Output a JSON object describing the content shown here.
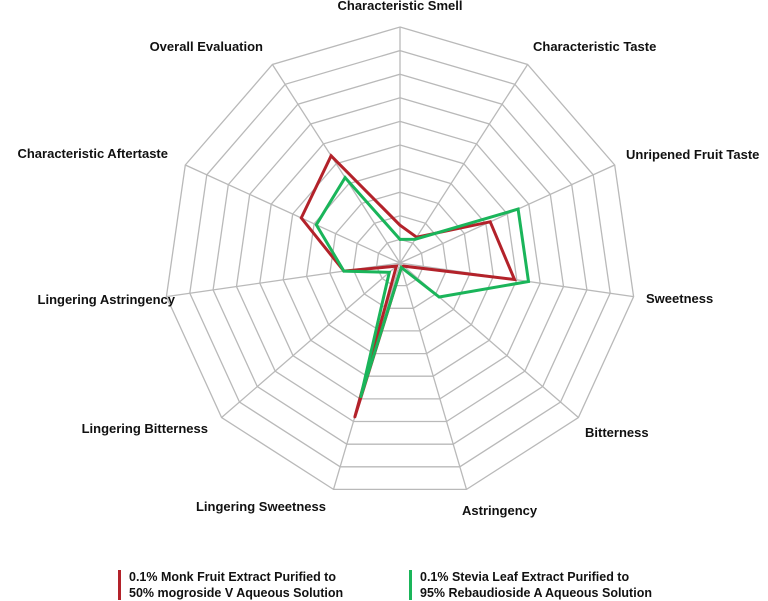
{
  "chart_data": {
    "type": "radar",
    "axes": [
      "Characteristic Smell",
      "Characteristic Taste",
      "Unripened Fruit Taste",
      "Sweetness",
      "Bitterness",
      "Astringency",
      "Lingering Sweetness",
      "Lingering Bitterness",
      "Lingering Astringency",
      "Characteristic Aftertaste",
      "Overall Evaluation"
    ],
    "range": [
      0,
      10
    ],
    "grid_levels": 10,
    "grid": true,
    "legend_placement": "bottom",
    "series": [
      {
        "name_lines": [
          "0.1%  Monk Fruit Extract Purified to",
          "50% mogroside V Aqueous Solution"
        ],
        "color": "#b3222a",
        "values": [
          1.6,
          1.3,
          4.2,
          4.9,
          0.2,
          0.2,
          6.8,
          0.2,
          2.4,
          4.6,
          5.4
        ]
      },
      {
        "name_lines": [
          "0.1%  Stevia Leaf Extract Purified to",
          "95% Rebaudioside A Aqueous Solution"
        ],
        "color": "#1ab55a",
        "values": [
          1.0,
          1.2,
          5.5,
          5.5,
          2.2,
          0.2,
          5.9,
          0.6,
          2.4,
          3.9,
          4.3
        ]
      }
    ]
  }
}
